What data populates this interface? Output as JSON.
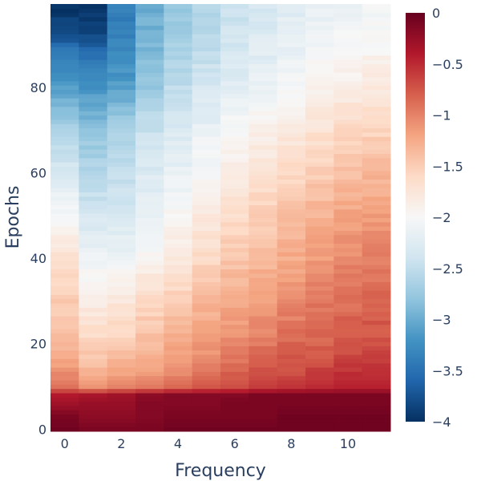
{
  "chart_data": {
    "type": "heatmap",
    "title": "",
    "xlabel": "Frequency",
    "ylabel": "Epochs",
    "x_range": [
      0,
      11
    ],
    "y_range": [
      0,
      99
    ],
    "x_ticks": [
      0,
      2,
      4,
      6,
      8,
      10
    ],
    "x_tick_labels": [
      "0",
      "2",
      "4",
      "6",
      "8",
      "10"
    ],
    "y_ticks": [
      0,
      20,
      40,
      60,
      80
    ],
    "y_tick_labels": [
      "0",
      "20",
      "40",
      "60",
      "80"
    ],
    "colorscale": "RdBu",
    "zmin": -4,
    "zmax": 0,
    "colorbar_ticks": [
      0,
      -0.5,
      -1,
      -1.5,
      -2,
      -2.5,
      -3,
      -3.5,
      -4
    ],
    "colorbar_tick_labels": [
      "0",
      "−0.5",
      "−1",
      "−1.5",
      "−2",
      "−2.5",
      "−3",
      "−3.5",
      "−4"
    ],
    "grid": false,
    "z_profiles": {
      "rows": [
        0,
        3,
        6,
        8,
        10,
        15,
        20,
        30,
        40,
        50,
        60,
        70,
        80,
        88,
        93,
        99
      ],
      "values": [
        [
          -0.05,
          -0.1,
          -0.1,
          -0.1,
          -0.05,
          -0.05,
          -0.05,
          -0.05,
          -0.05,
          -0.05,
          -0.05,
          -0.05
        ],
        [
          -0.1,
          -0.2,
          -0.2,
          -0.15,
          -0.1,
          -0.1,
          -0.1,
          -0.1,
          -0.05,
          -0.05,
          -0.05,
          -0.05
        ],
        [
          -0.3,
          -0.25,
          -0.25,
          -0.15,
          -0.15,
          -0.15,
          -0.1,
          -0.1,
          -0.1,
          -0.1,
          -0.1,
          -0.1
        ],
        [
          -0.4,
          -0.35,
          -0.3,
          -0.2,
          -0.15,
          -0.15,
          -0.15,
          -0.1,
          -0.1,
          -0.1,
          -0.1,
          -0.1
        ],
        [
          -0.9,
          -1.1,
          -1.0,
          -0.95,
          -0.85,
          -0.75,
          -0.7,
          -0.6,
          -0.55,
          -0.5,
          -0.45,
          -0.45
        ],
        [
          -1.2,
          -1.4,
          -1.3,
          -1.2,
          -1.1,
          -1.0,
          -0.9,
          -0.8,
          -0.75,
          -0.7,
          -0.6,
          -0.6
        ],
        [
          -1.35,
          -1.55,
          -1.5,
          -1.35,
          -1.25,
          -1.15,
          -1.05,
          -0.95,
          -0.85,
          -0.8,
          -0.75,
          -0.7
        ],
        [
          -1.5,
          -1.85,
          -1.75,
          -1.6,
          -1.5,
          -1.35,
          -1.25,
          -1.15,
          -1.05,
          -0.95,
          -0.9,
          -0.85
        ],
        [
          -1.7,
          -2.1,
          -2.1,
          -1.95,
          -1.8,
          -1.6,
          -1.45,
          -1.35,
          -1.25,
          -1.15,
          -1.05,
          -1.0
        ],
        [
          -2.0,
          -2.35,
          -2.35,
          -2.15,
          -1.95,
          -1.8,
          -1.65,
          -1.5,
          -1.4,
          -1.3,
          -1.2,
          -1.15
        ],
        [
          -2.3,
          -2.6,
          -2.5,
          -2.3,
          -2.15,
          -2.0,
          -1.85,
          -1.7,
          -1.6,
          -1.5,
          -1.4,
          -1.35
        ],
        [
          -2.6,
          -2.8,
          -2.65,
          -2.45,
          -2.3,
          -2.15,
          -2.0,
          -1.9,
          -1.8,
          -1.7,
          -1.6,
          -1.55
        ],
        [
          -3.1,
          -3.2,
          -3.1,
          -2.75,
          -2.5,
          -2.35,
          -2.2,
          -2.1,
          -2.0,
          -1.9,
          -1.85,
          -1.8
        ],
        [
          -3.4,
          -3.5,
          -3.3,
          -2.9,
          -2.65,
          -2.5,
          -2.35,
          -2.25,
          -2.15,
          -2.05,
          -2.0,
          -1.95
        ],
        [
          -3.85,
          -3.9,
          -3.35,
          -2.95,
          -2.7,
          -2.55,
          -2.4,
          -2.3,
          -2.2,
          -2.1,
          -2.05,
          -2.0
        ],
        [
          -3.95,
          -3.95,
          -3.4,
          -3.0,
          -2.75,
          -2.6,
          -2.45,
          -2.35,
          -2.25,
          -2.15,
          -2.1,
          -2.05
        ]
      ]
    }
  }
}
